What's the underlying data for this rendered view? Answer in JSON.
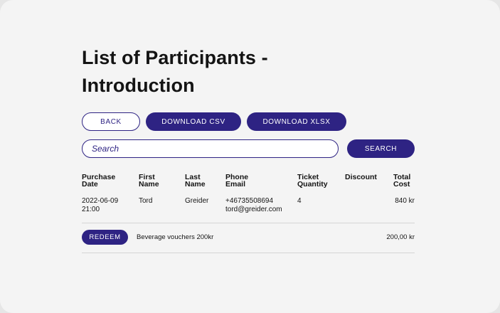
{
  "page": {
    "title": "List of Participants - Introduction"
  },
  "buttons": {
    "back": "BACK",
    "csv": "DOWNLOAD CSV",
    "xlsx": "DOWNLOAD XLSX",
    "search": "SEARCH",
    "redeem": "REDEEM"
  },
  "search": {
    "placeholder": "Search",
    "value": ""
  },
  "table": {
    "headers": {
      "purchase_date": [
        "Purchase",
        "Date"
      ],
      "first_name": [
        "First",
        "Name"
      ],
      "last_name": [
        "Last",
        "Name"
      ],
      "phone_email": [
        "Phone",
        "Email"
      ],
      "ticket_quantity": [
        "Ticket",
        "Quantity"
      ],
      "discount": "Discount",
      "total_cost": [
        "Total",
        "Cost"
      ]
    },
    "rows": [
      {
        "date": "2022-06-09",
        "time": "21:00",
        "first_name": "Tord",
        "last_name": "Greider",
        "phone": "+46735508694",
        "email": "tord@greider.com",
        "ticket_quantity": "4",
        "discount": "",
        "total_cost": "840 kr"
      }
    ]
  },
  "voucher": {
    "label": "Beverage vouchers 200kr",
    "amount": "200,00 kr"
  },
  "colors": {
    "primary": "#2e2383",
    "background": "#f4f4f4",
    "text": "#141414"
  }
}
